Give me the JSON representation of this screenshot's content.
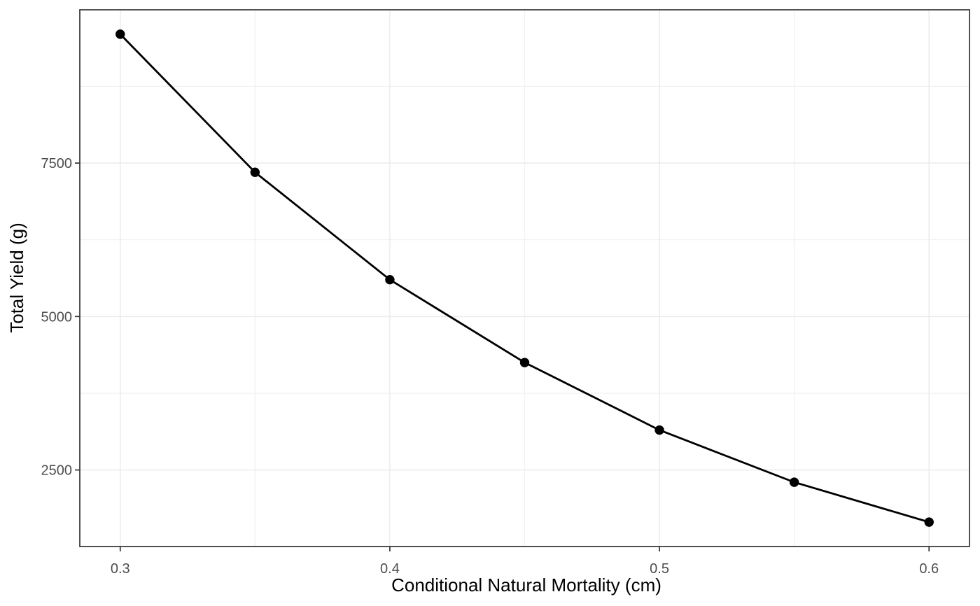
{
  "chart_data": {
    "type": "line",
    "title": "",
    "xlabel": "Conditional Natural Mortality (cm)",
    "ylabel": "Total Yield (g)",
    "x": [
      0.3,
      0.35,
      0.4,
      0.45,
      0.5,
      0.55,
      0.6
    ],
    "y": [
      9600,
      7350,
      5600,
      4250,
      3150,
      2300,
      1650
    ],
    "xlim": [
      0.285,
      0.615
    ],
    "ylim": [
      1252.5,
      9997.5
    ],
    "x_ticks": [
      0.3,
      0.4,
      0.5,
      0.6
    ],
    "x_tick_labels": [
      "0.3",
      "0.4",
      "0.5",
      "0.6"
    ],
    "y_ticks": [
      2500,
      5000,
      7500
    ],
    "y_tick_labels": [
      "2500",
      "5000",
      "7500"
    ],
    "x_minor_gridlines": [
      0.35,
      0.45,
      0.55
    ],
    "y_minor_gridlines": [
      3750,
      6250,
      8750
    ],
    "grid": true,
    "legend": false,
    "style": {
      "background_color": "#FFFFFF",
      "panel_background_color": "#FFFFFF",
      "panel_border_color": "#333333",
      "grid_major_color": "#EBEBEB",
      "grid_minor_color": "#F1F1F1",
      "line_color": "#000000",
      "point_color": "#000000",
      "tick_color": "#333333",
      "tick_label_color": "#4D4D4D",
      "axis_title_color": "#000000"
    }
  }
}
